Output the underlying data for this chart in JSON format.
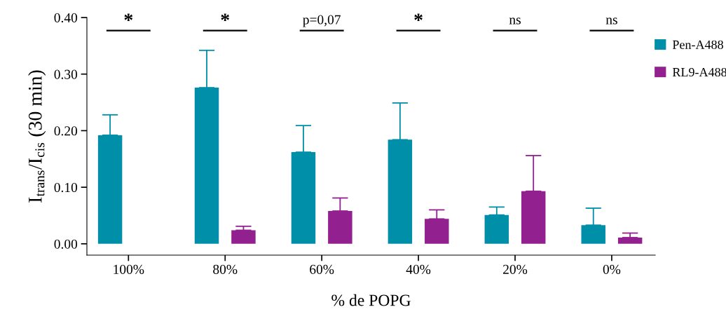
{
  "chart_data": {
    "type": "bar",
    "xlabel": "% de POPG",
    "ylabel": "I$_{trans}$/I$_{cis}$ (30 min)",
    "categories": [
      "100%",
      "80%",
      "60%",
      "40%",
      "20%",
      "0%"
    ],
    "series": [
      {
        "name": "Pen-A488",
        "color": "#008fa8",
        "values": [
          0.192,
          0.276,
          0.162,
          0.184,
          0.051,
          0.033
        ],
        "errors": [
          [
            0.192,
            0.228
          ],
          [
            0.276,
            0.342
          ],
          [
            0.162,
            0.209
          ],
          [
            0.184,
            0.249
          ],
          [
            0.051,
            0.065
          ],
          [
            0.033,
            0.063
          ]
        ]
      },
      {
        "name": "RL9-A488",
        "color": "#93208f",
        "values": [
          0.0,
          0.024,
          0.058,
          0.044,
          0.093,
          0.011
        ],
        "errors": [
          null,
          [
            0.024,
            0.031
          ],
          [
            0.058,
            0.081
          ],
          [
            0.044,
            0.06
          ],
          [
            0.093,
            0.156
          ],
          [
            0.011,
            0.019
          ]
        ]
      }
    ],
    "ylim": [
      -0.02,
      0.4
    ],
    "yticks": [
      {
        "value": 0,
        "label": "0.00"
      },
      {
        "value": 0.1,
        "label": "0.10"
      },
      {
        "value": 0.2,
        "label": "0.20"
      },
      {
        "value": 0.3,
        "label": "0.30"
      },
      {
        "value": 0.4,
        "label": "0.40"
      }
    ],
    "annotations": [
      "*",
      "*",
      "p=0,07",
      "*",
      "ns",
      "ns"
    ],
    "legend": "top right",
    "grid": false
  }
}
